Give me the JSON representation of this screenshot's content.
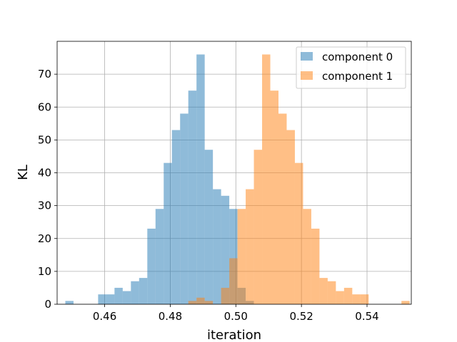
{
  "chart_data": {
    "type": "histogram",
    "xlabel": "iteration",
    "ylabel": "KL",
    "xlim": [
      0.4455,
      0.5535
    ],
    "ylim": [
      0,
      80
    ],
    "xticks": [
      0.46,
      0.48,
      0.5,
      0.52,
      0.54
    ],
    "xtick_labels": [
      "0.46",
      "0.48",
      "0.50",
      "0.52",
      "0.54"
    ],
    "yticks": [
      0,
      10,
      20,
      30,
      40,
      50,
      60,
      70
    ],
    "ytick_labels": [
      "0",
      "10",
      "20",
      "30",
      "40",
      "50",
      "60",
      "70"
    ],
    "grid": true,
    "legend_position": "top-right",
    "series": [
      {
        "name": "component 0",
        "color": "#1f77b4",
        "opacity": 0.5,
        "bins": [
          {
            "x0": 0.448,
            "x1": 0.4505,
            "count": 1
          },
          {
            "x0": 0.458,
            "x1": 0.4605,
            "count": 3
          },
          {
            "x0": 0.4605,
            "x1": 0.463,
            "count": 3
          },
          {
            "x0": 0.463,
            "x1": 0.4655,
            "count": 5
          },
          {
            "x0": 0.4655,
            "x1": 0.468,
            "count": 4
          },
          {
            "x0": 0.468,
            "x1": 0.4705,
            "count": 7
          },
          {
            "x0": 0.4705,
            "x1": 0.473,
            "count": 8
          },
          {
            "x0": 0.473,
            "x1": 0.4755,
            "count": 23
          },
          {
            "x0": 0.4755,
            "x1": 0.478,
            "count": 29
          },
          {
            "x0": 0.478,
            "x1": 0.4805,
            "count": 43
          },
          {
            "x0": 0.4805,
            "x1": 0.483,
            "count": 53
          },
          {
            "x0": 0.483,
            "x1": 0.4855,
            "count": 58
          },
          {
            "x0": 0.4855,
            "x1": 0.488,
            "count": 65
          },
          {
            "x0": 0.488,
            "x1": 0.4905,
            "count": 76
          },
          {
            "x0": 0.4905,
            "x1": 0.493,
            "count": 47
          },
          {
            "x0": 0.493,
            "x1": 0.4955,
            "count": 35
          },
          {
            "x0": 0.4955,
            "x1": 0.498,
            "count": 33
          },
          {
            "x0": 0.498,
            "x1": 0.5005,
            "count": 29
          },
          {
            "x0": 0.5005,
            "x1": 0.503,
            "count": 5
          },
          {
            "x0": 0.503,
            "x1": 0.5055,
            "count": 1
          }
        ]
      },
      {
        "name": "component 1",
        "color": "#ff7f0e",
        "opacity": 0.5,
        "bins": [
          {
            "x0": 0.4855,
            "x1": 0.488,
            "count": 1
          },
          {
            "x0": 0.488,
            "x1": 0.4905,
            "count": 2
          },
          {
            "x0": 0.4905,
            "x1": 0.493,
            "count": 1
          },
          {
            "x0": 0.4955,
            "x1": 0.498,
            "count": 5
          },
          {
            "x0": 0.498,
            "x1": 0.5005,
            "count": 14
          },
          {
            "x0": 0.5005,
            "x1": 0.503,
            "count": 29
          },
          {
            "x0": 0.503,
            "x1": 0.5055,
            "count": 35
          },
          {
            "x0": 0.5055,
            "x1": 0.508,
            "count": 47
          },
          {
            "x0": 0.508,
            "x1": 0.5105,
            "count": 76
          },
          {
            "x0": 0.5105,
            "x1": 0.513,
            "count": 65
          },
          {
            "x0": 0.513,
            "x1": 0.5155,
            "count": 58
          },
          {
            "x0": 0.5155,
            "x1": 0.518,
            "count": 53
          },
          {
            "x0": 0.518,
            "x1": 0.5205,
            "count": 43
          },
          {
            "x0": 0.5205,
            "x1": 0.523,
            "count": 29
          },
          {
            "x0": 0.523,
            "x1": 0.5255,
            "count": 23
          },
          {
            "x0": 0.5255,
            "x1": 0.528,
            "count": 8
          },
          {
            "x0": 0.528,
            "x1": 0.5305,
            "count": 7
          },
          {
            "x0": 0.5305,
            "x1": 0.533,
            "count": 4
          },
          {
            "x0": 0.533,
            "x1": 0.5355,
            "count": 5
          },
          {
            "x0": 0.5355,
            "x1": 0.538,
            "count": 3
          },
          {
            "x0": 0.538,
            "x1": 0.5405,
            "count": 3
          },
          {
            "x0": 0.5505,
            "x1": 0.553,
            "count": 1
          }
        ]
      }
    ]
  }
}
